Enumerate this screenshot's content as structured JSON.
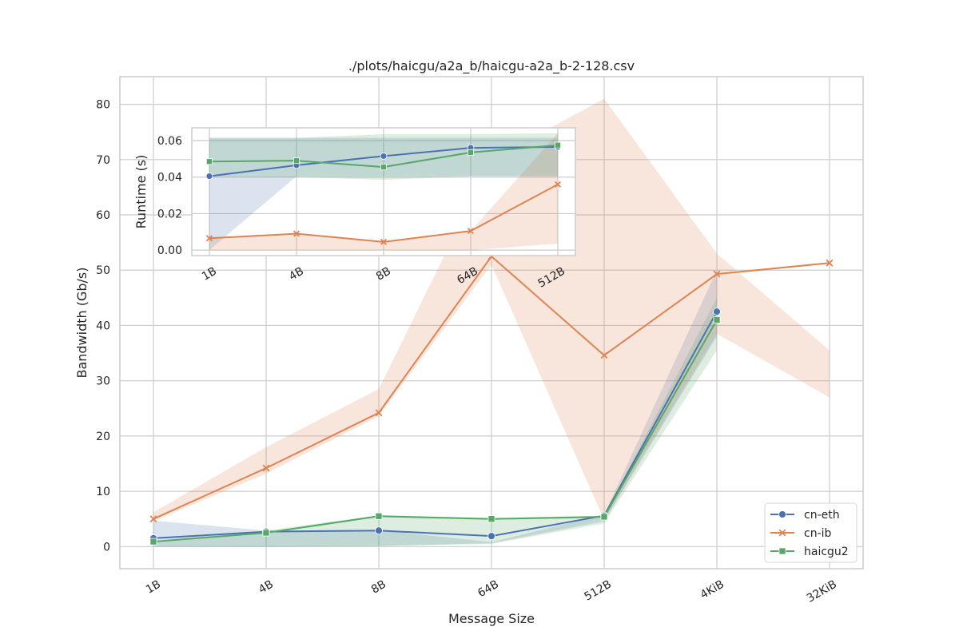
{
  "chart_data": [
    {
      "id": "main",
      "type": "line",
      "title": "./plots/haicgu/a2a_b/haicgu-a2a_b-2-128.csv",
      "xlabel": "Message Size",
      "ylabel": "Bandwidth (Gb/s)",
      "categories": [
        "1B",
        "4B",
        "8B",
        "64B",
        "512B",
        "4KiB",
        "32KiB"
      ],
      "ylim": [
        -4,
        85
      ],
      "yticks": [
        0,
        10,
        20,
        30,
        40,
        50,
        60,
        70,
        80
      ],
      "grid": true,
      "legend_position": "bottom-right",
      "series": [
        {
          "name": "cn-eth",
          "color": "#4c72b0",
          "marker": "circle",
          "values": [
            1.5,
            2.7,
            2.9,
            1.9,
            5.6,
            42.5,
            null
          ],
          "ci_low": [
            0.0,
            0.0,
            0.1,
            0.6,
            4.6,
            38.0,
            null
          ],
          "ci_high": [
            4.7,
            2.9,
            3.0,
            0.8,
            5.8,
            50.0,
            null
          ]
        },
        {
          "name": "cn-ib",
          "color": "#dd8452",
          "marker": "x",
          "values": [
            5.0,
            14.2,
            24.2,
            52.5,
            34.6,
            49.3,
            51.3
          ],
          "ci_low": [
            4.6,
            13.2,
            23.6,
            51.0,
            4.8,
            38.5,
            27.0
          ],
          "ci_high": [
            6.2,
            18.0,
            28.5,
            70.0,
            81.0,
            53.0,
            35.5
          ]
        },
        {
          "name": "haicgu2",
          "color": "#55a868",
          "marker": "square",
          "values": [
            0.9,
            2.5,
            5.5,
            5.0,
            5.4,
            41.0,
            null
          ],
          "ci_low": [
            0.0,
            0.0,
            0.1,
            0.5,
            4.2,
            35.5,
            null
          ],
          "ci_high": [
            1.0,
            2.9,
            5.7,
            5.2,
            5.6,
            45.0,
            null
          ]
        }
      ]
    },
    {
      "id": "inset",
      "type": "line",
      "title": "",
      "xlabel": "",
      "ylabel": "Runtime (s)",
      "categories": [
        "1B",
        "4B",
        "8B",
        "64B",
        "512B"
      ],
      "ylim": [
        -0.003,
        0.067
      ],
      "yticks": [
        0.0,
        0.02,
        0.04,
        0.06
      ],
      "ytick_labels": [
        "0.00",
        "0.02",
        "0.04",
        "0.06"
      ],
      "grid": true,
      "series": [
        {
          "name": "cn-eth",
          "color": "#4c72b0",
          "marker": "circle",
          "values": [
            0.0405,
            0.0465,
            0.0515,
            0.056,
            0.0565
          ],
          "ci_low": [
            0.0,
            0.0405,
            0.0405,
            0.0405,
            0.0405
          ],
          "ci_high": [
            0.0615,
            0.0615,
            0.0615,
            0.0615,
            0.0615
          ]
        },
        {
          "name": "cn-ib",
          "color": "#dd8452",
          "marker": "x",
          "values": [
            0.0065,
            0.009,
            0.0045,
            0.0105,
            0.036
          ],
          "ci_low": [
            0.0,
            0.0,
            0.0,
            0.0,
            0.0035
          ],
          "ci_high": [
            0.0065,
            0.009,
            0.0045,
            0.0105,
            0.064
          ]
        },
        {
          "name": "haicgu2",
          "color": "#55a868",
          "marker": "square",
          "values": [
            0.0485,
            0.049,
            0.0455,
            0.0535,
            0.0575
          ],
          "ci_low": [
            0.0405,
            0.04,
            0.0385,
            0.0405,
            0.0405
          ],
          "ci_high": [
            0.0615,
            0.0615,
            0.0635,
            0.0635,
            0.064
          ]
        }
      ]
    }
  ]
}
